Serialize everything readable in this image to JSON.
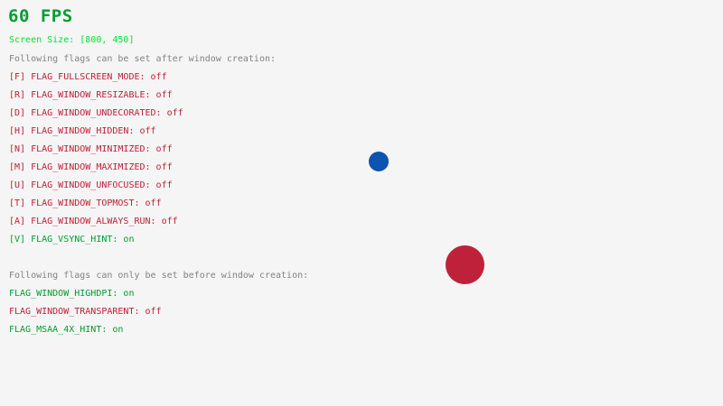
{
  "hud": {
    "fps_label": "60 FPS",
    "screen_size_label": "Screen Size: [800, 450]"
  },
  "sections": {
    "after": {
      "heading": "Following flags can be set after window creation:",
      "items": [
        {
          "text": "[F] FLAG_FULLSCREEN_MODE: off",
          "state": "off",
          "color": "#be2137"
        },
        {
          "text": "[R] FLAG_WINDOW_RESIZABLE: off",
          "state": "off",
          "color": "#be2137"
        },
        {
          "text": "[D] FLAG_WINDOW_UNDECORATED: off",
          "state": "off",
          "color": "#be2137"
        },
        {
          "text": "[H] FLAG_WINDOW_HIDDEN: off",
          "state": "off",
          "color": "#be2137"
        },
        {
          "text": "[N] FLAG_WINDOW_MINIMIZED: off",
          "state": "off",
          "color": "#be2137"
        },
        {
          "text": "[M] FLAG_WINDOW_MAXIMIZED: off",
          "state": "off",
          "color": "#be2137"
        },
        {
          "text": "[U] FLAG_WINDOW_UNFOCUSED: off",
          "state": "off",
          "color": "#be2137"
        },
        {
          "text": "[T] FLAG_WINDOW_TOPMOST: off",
          "state": "off",
          "color": "#be2137"
        },
        {
          "text": "[A] FLAG_WINDOW_ALWAYS_RUN: off",
          "state": "off",
          "color": "#be2137"
        },
        {
          "text": "[V] FLAG_VSYNC_HINT: on",
          "state": "on",
          "color": "#009e2f"
        }
      ]
    },
    "before": {
      "heading": "Following flags can only be set before window creation:",
      "items": [
        {
          "text": "FLAG_WINDOW_HIGHDPI: on",
          "state": "on",
          "color": "#009e2f"
        },
        {
          "text": "FLAG_WINDOW_TRANSPARENT: off",
          "state": "off",
          "color": "#be2137"
        },
        {
          "text": "FLAG_MSAA_4X_HINT: on",
          "state": "on",
          "color": "#009e2f"
        }
      ]
    }
  },
  "colors": {
    "background": "#f5f5f5",
    "fps": "#009e2f",
    "screen_size": "#00e430",
    "heading": "#828282",
    "flag_on": "#009e2f",
    "flag_off": "#be2137",
    "ball_small_blue": "#0d53b0",
    "ball_large_red": "#c0213a"
  },
  "balls": [
    {
      "name": "small-blue-ball",
      "color": "#0d53b0"
    },
    {
      "name": "large-red-ball",
      "color": "#c0213a"
    }
  ]
}
